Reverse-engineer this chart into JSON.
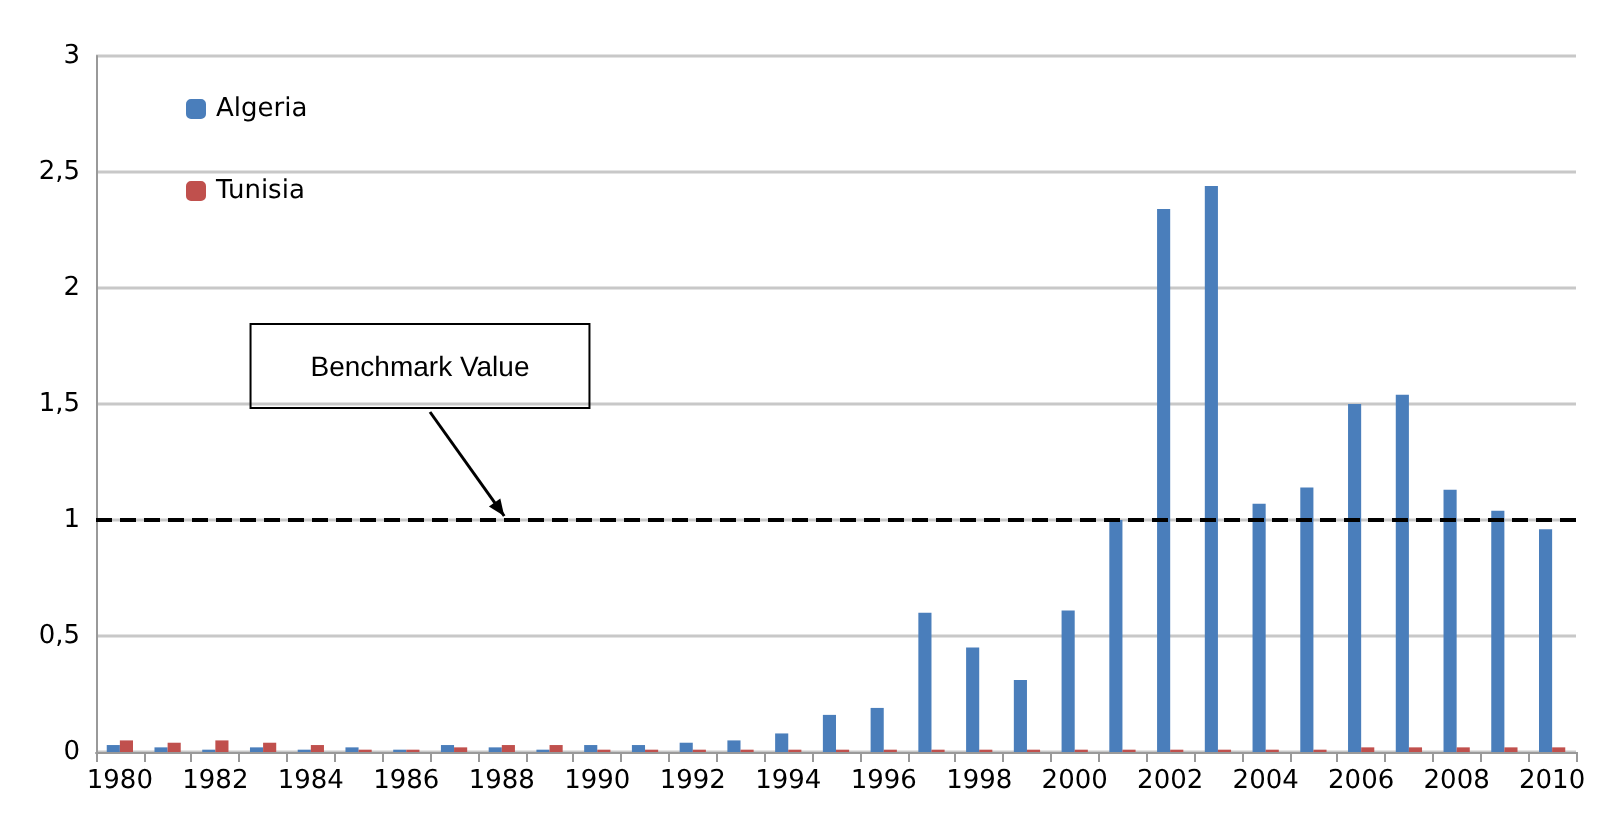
{
  "chart_data": {
    "type": "bar",
    "categories": [
      "1980",
      null,
      "1982",
      null,
      "1984",
      null,
      "1986",
      null,
      "1988",
      null,
      "1990",
      null,
      "1992",
      null,
      "1994",
      null,
      "1996",
      null,
      "1998",
      null,
      "2000",
      null,
      "2002",
      null,
      "2004",
      null,
      "2006",
      null,
      "2008",
      null,
      "2010"
    ],
    "series": [
      {
        "name": "Algeria",
        "color": "#4a7ebb",
        "values": [
          0.03,
          0.02,
          0.01,
          0.02,
          0.01,
          0.02,
          0.01,
          0.03,
          0.02,
          0.01,
          0.03,
          0.03,
          0.04,
          0.05,
          0.08,
          0.16,
          0.19,
          0.6,
          0.45,
          0.31,
          0.61,
          1.0,
          2.34,
          2.44,
          1.07,
          1.14,
          1.5,
          1.54,
          1.13,
          1.04,
          0.96
        ]
      },
      {
        "name": "Tunisia",
        "color": "#c0504d",
        "values": [
          0.05,
          0.04,
          0.05,
          0.04,
          0.03,
          0.01,
          0.01,
          0.02,
          0.03,
          0.03,
          0.01,
          0.01,
          0.01,
          0.01,
          0.01,
          0.01,
          0.01,
          0.01,
          0.01,
          0.01,
          0.01,
          0.01,
          0.01,
          0.01,
          0.01,
          0.01,
          0.02,
          0.02,
          0.02,
          0.02,
          0.02
        ]
      }
    ],
    "ylim": [
      0,
      3
    ],
    "yticks": [
      0,
      {
        "value": 0.5,
        "label": "0,5"
      },
      1,
      {
        "value": 1.5,
        "label": "1,5"
      },
      2,
      {
        "value": 2.5,
        "label": "2,5"
      },
      3
    ],
    "grid": "y",
    "legend": "top left",
    "ref_lines": [
      {
        "axis": "y",
        "value": 1,
        "label": "Benchmark Value",
        "color": "#000000",
        "line_style": "dashed"
      }
    ]
  }
}
